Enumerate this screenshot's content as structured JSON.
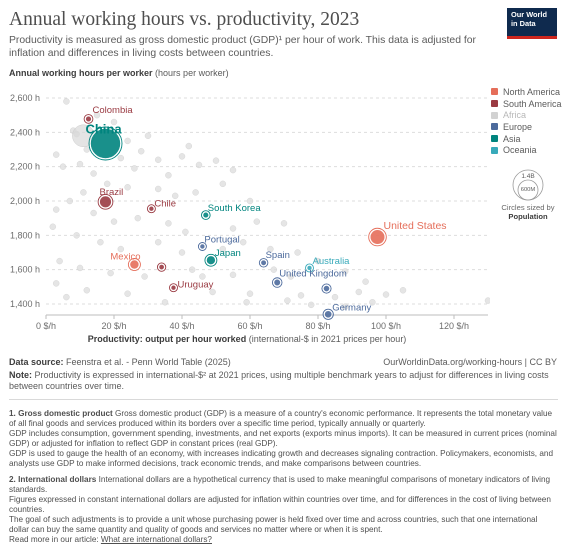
{
  "header": {
    "title": "Annual working hours vs. productivity, 2023",
    "subtitle": "Productivity is measured as gross domestic product (GDP)¹ per hour of work. This data is adjusted for inflation and differences in living costs between countries.",
    "logo_line1": "Our World",
    "logo_line2": "in Data"
  },
  "legend": {
    "items": [
      {
        "label": "North America",
        "color": "#e56e5a"
      },
      {
        "label": "South America",
        "color": "#9a3a42"
      },
      {
        "label": "Africa",
        "color": "#d2d2d2",
        "muted": true
      },
      {
        "label": "Europe",
        "color": "#4c6a9c"
      },
      {
        "label": "Asia",
        "color": "#00847e"
      },
      {
        "label": "Oceania",
        "color": "#38aaba"
      }
    ],
    "size_big": "1.4B",
    "size_small": "600M",
    "size_caption_1": "Circles sized by",
    "size_caption_2": "Population"
  },
  "chart_data": {
    "type": "scatter",
    "title": "Annual working hours vs. productivity, 2023",
    "ylabel_main": "Annual working hours per worker",
    "ylabel_unit": "(hours per worker)",
    "xlabel_main": "Productivity: output per hour worked",
    "xlabel_unit": "(international-$ in 2021 prices per hour)",
    "xlim": [
      0,
      130
    ],
    "ylim": [
      1350,
      2680
    ],
    "x_ticks": [
      0,
      20,
      40,
      60,
      80,
      100,
      120
    ],
    "x_tick_labels": [
      "0 $/h",
      "20 $/h",
      "40 $/h",
      "60 $/h",
      "80 $/h",
      "100 $/h",
      "120 $/h"
    ],
    "y_ticks": [
      1400,
      1600,
      1800,
      2000,
      2200,
      2400,
      2600
    ],
    "y_tick_labels": [
      "1,400 h",
      "1,600 h",
      "1,800 h",
      "2,000 h",
      "2,200 h",
      "2,400 h",
      "2,600 h"
    ],
    "grid": "horizontal dashed",
    "legend_position": "right",
    "labeled_points": [
      {
        "label": "China",
        "region": "Asia",
        "x": 17.5,
        "y": 2335,
        "pop": 1410,
        "label_big": true
      },
      {
        "label": "Colombia",
        "region": "South America",
        "x": 12.5,
        "y": 2478,
        "pop": 52
      },
      {
        "label": "Brazil",
        "region": "South America",
        "x": 17.5,
        "y": 1995,
        "pop": 216
      },
      {
        "label": "Chile",
        "region": "South America",
        "x": 31,
        "y": 1955,
        "pop": 19
      },
      {
        "label": "South Korea",
        "region": "Asia",
        "x": 47,
        "y": 1918,
        "pop": 51
      },
      {
        "label": "United States",
        "region": "North America",
        "x": 97.5,
        "y": 1790,
        "pop": 335
      },
      {
        "label": "Portugal",
        "region": "Europe",
        "x": 46,
        "y": 1735,
        "pop": 10
      },
      {
        "label": "Japan",
        "region": "Asia",
        "x": 48.5,
        "y": 1655,
        "pop": 124
      },
      {
        "label": "Mexico",
        "region": "North America",
        "x": 26,
        "y": 1630,
        "pop": 128
      },
      {
        "label": "",
        "region": "South America",
        "x": 34,
        "y": 1615,
        "pop": 45
      },
      {
        "label": "Spain",
        "region": "Europe",
        "x": 64,
        "y": 1640,
        "pop": 48
      },
      {
        "label": "Australia",
        "region": "Oceania",
        "x": 77.5,
        "y": 1610,
        "pop": 27
      },
      {
        "label": "United Kingdom",
        "region": "Europe",
        "x": 68,
        "y": 1525,
        "pop": 68
      },
      {
        "label": "",
        "region": "Europe",
        "x": 82.5,
        "y": 1490,
        "pop": 60
      },
      {
        "label": "Uruguay",
        "region": "South America",
        "x": 37.5,
        "y": 1495,
        "pop": 3.5
      },
      {
        "label": "Germany",
        "region": "Europe",
        "x": 83,
        "y": 1340,
        "pop": 84
      }
    ],
    "other_points": [
      {
        "x": 6,
        "y": 2580
      },
      {
        "x": 8,
        "y": 2410
      },
      {
        "x": 9,
        "y": 2390
      },
      {
        "x": 15,
        "y": 2500
      },
      {
        "x": 20,
        "y": 2460
      },
      {
        "x": 3,
        "y": 2270
      },
      {
        "x": 5,
        "y": 2200
      },
      {
        "x": 10,
        "y": 2215
      },
      {
        "x": 12,
        "y": 2300
      },
      {
        "x": 14,
        "y": 2160
      },
      {
        "x": 22,
        "y": 2250
      },
      {
        "x": 24,
        "y": 2350
      },
      {
        "x": 26,
        "y": 2190
      },
      {
        "x": 28,
        "y": 2290
      },
      {
        "x": 30,
        "y": 2380
      },
      {
        "x": 33,
        "y": 2240
      },
      {
        "x": 36,
        "y": 2150
      },
      {
        "x": 40,
        "y": 2260
      },
      {
        "x": 45,
        "y": 2210
      },
      {
        "x": 50,
        "y": 2235
      },
      {
        "x": 55,
        "y": 2180
      },
      {
        "x": 42,
        "y": 2320
      },
      {
        "x": 18,
        "y": 2100
      },
      {
        "x": 11,
        "y": 2050
      },
      {
        "x": 7,
        "y": 2000
      },
      {
        "x": 24,
        "y": 2080
      },
      {
        "x": 33,
        "y": 2070
      },
      {
        "x": 38,
        "y": 2030
      },
      {
        "x": 44,
        "y": 2050
      },
      {
        "x": 52,
        "y": 2100
      },
      {
        "x": 60,
        "y": 2000
      },
      {
        "x": 3,
        "y": 1950
      },
      {
        "x": 14,
        "y": 1930
      },
      {
        "x": 20,
        "y": 1880
      },
      {
        "x": 27,
        "y": 1900
      },
      {
        "x": 36,
        "y": 1870
      },
      {
        "x": 41,
        "y": 1820
      },
      {
        "x": 55,
        "y": 1840
      },
      {
        "x": 62,
        "y": 1880
      },
      {
        "x": 70,
        "y": 1870
      },
      {
        "x": 2,
        "y": 1850
      },
      {
        "x": 9,
        "y": 1800
      },
      {
        "x": 16,
        "y": 1760
      },
      {
        "x": 22,
        "y": 1720
      },
      {
        "x": 33,
        "y": 1760
      },
      {
        "x": 40,
        "y": 1700
      },
      {
        "x": 52,
        "y": 1720
      },
      {
        "x": 58,
        "y": 1760
      },
      {
        "x": 66,
        "y": 1720
      },
      {
        "x": 74,
        "y": 1700
      },
      {
        "x": 4,
        "y": 1650
      },
      {
        "x": 10,
        "y": 1610
      },
      {
        "x": 19,
        "y": 1580
      },
      {
        "x": 29,
        "y": 1560
      },
      {
        "x": 43,
        "y": 1600
      },
      {
        "x": 55,
        "y": 1570
      },
      {
        "x": 72,
        "y": 1560
      },
      {
        "x": 88,
        "y": 1590
      },
      {
        "x": 94,
        "y": 1530
      },
      {
        "x": 3,
        "y": 1520
      },
      {
        "x": 12,
        "y": 1480
      },
      {
        "x": 24,
        "y": 1460
      },
      {
        "x": 49,
        "y": 1470
      },
      {
        "x": 60,
        "y": 1460
      },
      {
        "x": 75,
        "y": 1450
      },
      {
        "x": 85,
        "y": 1440
      },
      {
        "x": 92,
        "y": 1470
      },
      {
        "x": 100,
        "y": 1455
      },
      {
        "x": 78,
        "y": 1395
      },
      {
        "x": 88,
        "y": 1385
      },
      {
        "x": 96,
        "y": 1410
      },
      {
        "x": 71,
        "y": 1420
      },
      {
        "x": 105,
        "y": 1480
      },
      {
        "x": 130,
        "y": 1420
      },
      {
        "x": 35,
        "y": 1410
      },
      {
        "x": 6,
        "y": 1440
      },
      {
        "x": 59,
        "y": 1410
      },
      {
        "x": 46,
        "y": 1560
      },
      {
        "x": 67,
        "y": 1600
      },
      {
        "x": 80,
        "y": 1650
      }
    ]
  },
  "footer": {
    "source_label": "Data source:",
    "source_text": "Feenstra et al. - Penn World Table (2025)",
    "url_text": "OurWorldinData.org/working-hours | CC BY",
    "note_label": "Note:",
    "note_text": "Productivity is expressed in international-$² at 2021 prices, using multiple benchmark years to adjust for differences in living costs between countries over time."
  },
  "notes": {
    "n1_title": "1. Gross domestic product",
    "n1_p1": "Gross domestic product (GDP) is a measure of a country's economic performance. It represents the total monetary value of all final goods and services produced within its borders over a specific time period, typically annually or quarterly.",
    "n1_p2": "GDP includes consumption, government spending, investments, and net exports (exports minus imports). It can be measured in current prices (nominal GDP) or adjusted for inflation to reflect GDP in constant prices (real GDP).",
    "n1_p3": "GDP is used to gauge the health of an economy, with increases indicating growth and decreases signaling contraction. Policymakers, economists, and analysts use GDP to make informed decisions, track economic trends, and make comparisons between countries.",
    "n2_title": "2. International dollars",
    "n2_p1": "International dollars are a hypothetical currency that is used to make meaningful comparisons of monetary indicators of living standards.",
    "n2_p2": "Figures expressed in constant international dollars are adjusted for inflation within countries over time, and for differences in the cost of living between countries.",
    "n2_p3": "The goal of such adjustments is to provide a unit whose purchasing power is held fixed over time and across countries, such that one international dollar can buy the same quantity and quality of goods and services no matter where or when it is spent.",
    "read_more_prefix": "Read more in our article: ",
    "read_more_link": "What are international dollars?"
  }
}
